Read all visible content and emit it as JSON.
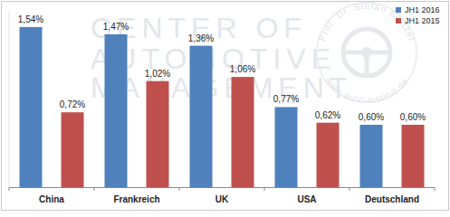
{
  "chart_data": {
    "type": "bar",
    "categories": [
      "China",
      "Frankreich",
      "UK",
      "USA",
      "Deutschland"
    ],
    "series": [
      {
        "name": "JH1 2016",
        "color": "#4f81bd",
        "values": [
          1.54,
          1.47,
          1.36,
          0.77,
          0.6
        ],
        "value_labels": [
          "1,54%",
          "1,47%",
          "1,36%",
          "0,77%",
          "0,60%"
        ]
      },
      {
        "name": "JH1 2015",
        "color": "#c0504d",
        "values": [
          0.72,
          1.02,
          1.06,
          0.62,
          0.6
        ],
        "value_labels": [
          "0,72%",
          "1,02%",
          "1,06%",
          "0,62%",
          "0,60%"
        ]
      }
    ],
    "ylim": [
      0,
      1.7
    ],
    "data_labels": true,
    "tick_labels": "x",
    "grid": false,
    "legend": "top-right",
    "annotations": [
      "CENTER OF",
      "AUTOMOTIVE",
      "MANAGEMENT",
      "Prof. Dr. Stefan Bratzel",
      "www.auto-institut.de"
    ]
  }
}
